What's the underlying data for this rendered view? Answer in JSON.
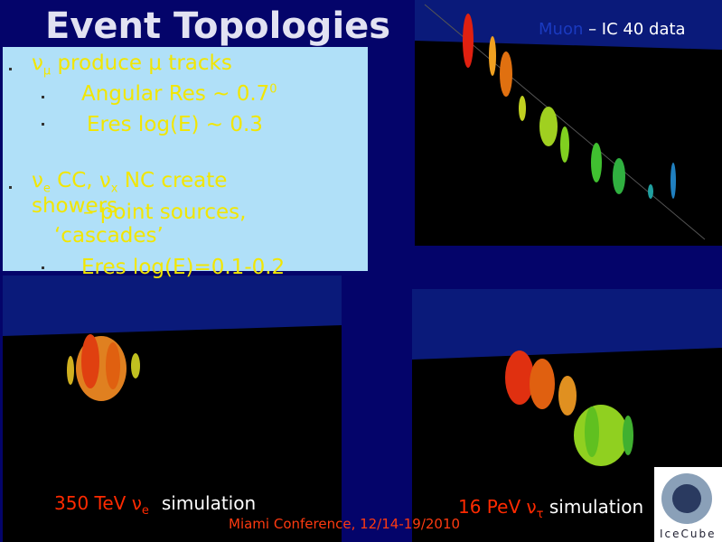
{
  "title": "Event Topologies",
  "bullet_1": {
    "nu": "ν",
    "flavor": "μ",
    "text": " produce μ tracks"
  },
  "sub_bullets_1": [
    {
      "text": "Angular Res ~ 0.7",
      "superscript": "0"
    },
    {
      "text": "Eres log(E) ~ 0.3"
    }
  ],
  "bullet_2": {
    "nu_1": "ν",
    "flavor_1": "e",
    "text_1": " CC, ",
    "nu_2": "ν",
    "flavor_2": "x",
    "text_2": " NC create",
    "line_2": "showers",
    "overlap": "– point sources,",
    "line_3": "‘cascades’"
  },
  "sub_bullets_2": [
    {
      "text": "Eres log(E)=0.1-0.2"
    }
  ],
  "muon_panel": {
    "label": "Muon",
    "text": " – IC 40 data"
  },
  "captions": [
    {
      "energy": "350 TeV ν",
      "flavor": "e",
      "text": "simulation"
    },
    {
      "energy": "16 PeV ν",
      "flavor": "τ",
      "text": " simulation"
    }
  ],
  "footer": "Miami Conference, 12/14-19/2010",
  "logo": "IceCube"
}
